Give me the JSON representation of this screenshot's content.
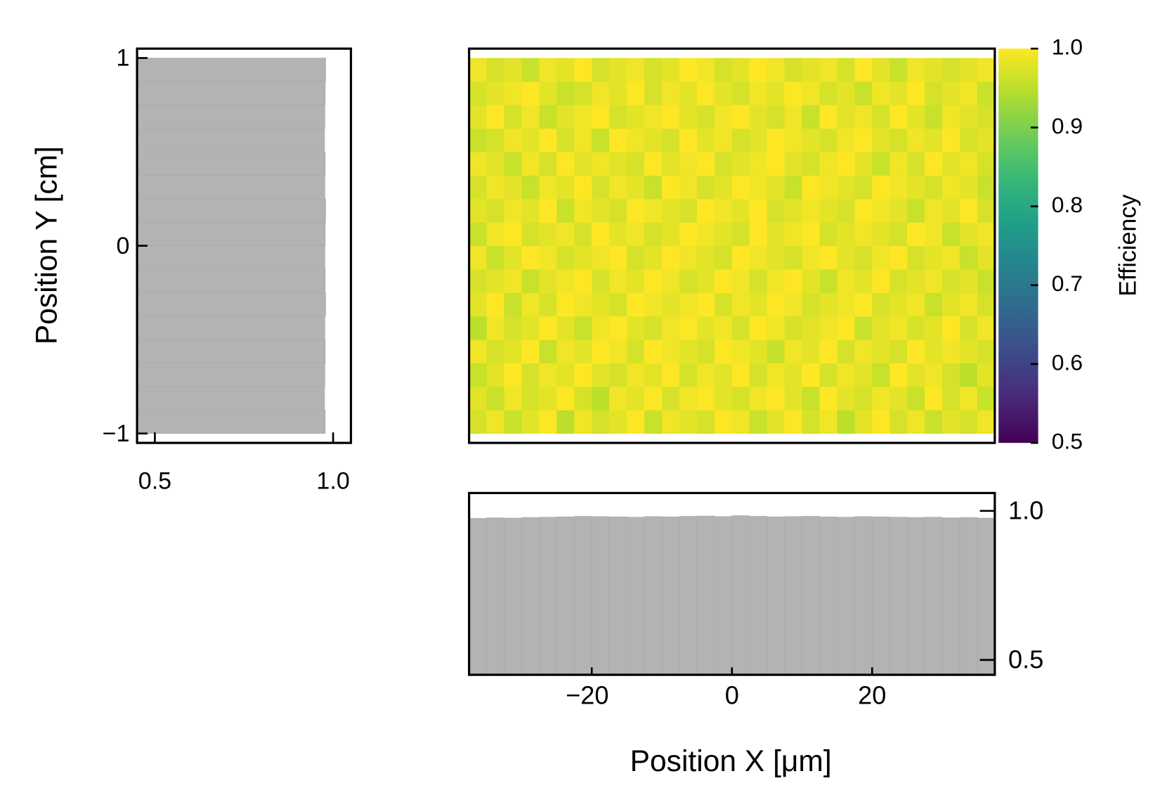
{
  "chart_data": [
    {
      "type": "heatmap",
      "colormap": "viridis",
      "xbins": [
        -37.5,
        -35,
        -32.5,
        -30,
        -27.5,
        -25,
        -22.5,
        -20,
        -17.5,
        -15,
        -12.5,
        -10,
        -7.5,
        -5,
        -2.5,
        0,
        2.5,
        5,
        7.5,
        10,
        12.5,
        15,
        17.5,
        20,
        22.5,
        25,
        27.5,
        30,
        32.5,
        35,
        37.5
      ],
      "ybins": [
        -1,
        -0.875,
        -0.75,
        -0.625,
        -0.5,
        -0.375,
        -0.25,
        -0.125,
        0,
        0.125,
        0.25,
        0.375,
        0.5,
        0.625,
        0.75,
        0.875,
        1
      ],
      "xlim": [
        -37.5,
        37.5
      ],
      "ylim": [
        -1.05,
        1.05
      ],
      "z": [
        [
          0.97,
          0.99,
          0.96,
          0.98,
          1,
          0.95,
          0.99,
          0.97,
          0.98,
          1,
          0.96,
          0.99,
          0.98,
          0.97,
          1,
          0.99,
          0.96,
          0.98,
          1,
          0.97,
          0.99,
          0.95,
          0.98,
          1,
          0.97,
          0.99,
          0.96,
          0.98,
          0.97,
          0.99
        ],
        [
          0.98,
          0.96,
          0.99,
          0.97,
          0.98,
          1,
          0.97,
          0.95,
          0.99,
          0.98,
          1,
          0.97,
          0.99,
          1,
          0.98,
          0.97,
          0.99,
          1,
          0.98,
          0.96,
          1,
          0.98,
          0.97,
          0.99,
          0.98,
          0.96,
          1,
          0.97,
          0.99,
          0.96
        ],
        [
          0.96,
          0.98,
          1,
          0.97,
          0.99,
          0.98,
          1,
          0.98,
          0.97,
          0.99,
          0.98,
          1,
          0.97,
          0.99,
          0.98,
          1,
          0.97,
          0.99,
          0.98,
          1,
          0.97,
          0.99,
          0.98,
          0.96,
          1,
          0.98,
          0.99,
          0.97,
          0.95,
          0.98
        ],
        [
          0.99,
          0.97,
          0.98,
          1,
          0.96,
          0.99,
          0.98,
          1,
          0.99,
          0.97,
          1,
          0.99,
          0.98,
          0.97,
          1,
          0.99,
          0.98,
          0.96,
          0.99,
          0.98,
          1,
          0.97,
          0.99,
          0.98,
          0.97,
          1,
          0.98,
          0.99,
          0.98,
          0.97
        ],
        [
          0.95,
          0.99,
          0.97,
          0.98,
          1,
          0.98,
          0.96,
          0.99,
          1,
          0.98,
          0.97,
          0.99,
          1,
          0.98,
          0.99,
          0.97,
          1,
          0.99,
          0.97,
          0.98,
          0.99,
          1,
          0.96,
          0.98,
          0.99,
          0.97,
          0.98,
          1,
          0.97,
          0.99
        ],
        [
          0.98,
          1,
          0.96,
          0.99,
          0.97,
          1,
          0.99,
          0.98,
          0.97,
          1,
          0.99,
          0.98,
          0.99,
          1,
          0.97,
          0.99,
          0.98,
          1,
          0.99,
          0.97,
          0.98,
          0.99,
          1,
          0.97,
          0.98,
          0.99,
          0.96,
          0.98,
          0.99,
          0.97
        ],
        [
          0.97,
          0.98,
          0.99,
          0.96,
          0.98,
          0.99,
          1,
          0.97,
          0.99,
          0.98,
          1,
          0.99,
          0.97,
          0.98,
          1,
          0.99,
          0.97,
          0.99,
          1,
          0.98,
          0.96,
          0.99,
          0.98,
          1,
          0.97,
          0.98,
          0.99,
          0.97,
          0.98,
          0.96
        ],
        [
          0.99,
          0.96,
          0.98,
          1,
          0.99,
          0.97,
          0.98,
          0.99,
          1,
          0.97,
          0.98,
          1,
          0.99,
          0.98,
          0.97,
          1,
          0.99,
          0.98,
          0.97,
          0.99,
          1,
          0.98,
          0.97,
          0.99,
          1,
          0.97,
          0.98,
          0.99,
          0.96,
          0.98
        ],
        [
          0.96,
          0.99,
          1,
          0.97,
          0.98,
          0.99,
          0.97,
          1,
          0.98,
          0.99,
          0.97,
          0.98,
          1,
          0.99,
          0.98,
          0.97,
          1,
          0.98,
          0.99,
          1,
          0.97,
          0.98,
          0.99,
          0.98,
          0.97,
          1,
          0.99,
          0.96,
          0.98,
          0.99
        ],
        [
          0.98,
          0.97,
          0.99,
          0.98,
          1,
          0.96,
          0.99,
          0.98,
          0.97,
          1,
          0.99,
          0.98,
          0.97,
          1,
          0.99,
          0.98,
          1,
          0.97,
          0.98,
          0.99,
          0.98,
          0.97,
          1,
          0.99,
          0.98,
          0.96,
          0.99,
          0.98,
          1,
          0.97
        ],
        [
          0.97,
          0.99,
          0.98,
          0.96,
          0.99,
          0.98,
          1,
          0.97,
          0.99,
          0.98,
          0.96,
          1,
          0.99,
          0.97,
          0.98,
          1,
          0.99,
          0.98,
          0.96,
          1,
          0.99,
          0.98,
          0.97,
          1,
          0.99,
          0.98,
          0.97,
          0.99,
          0.98,
          0.96
        ],
        [
          0.99,
          0.98,
          0.96,
          0.99,
          0.97,
          1,
          0.98,
          0.99,
          0.98,
          0.97,
          1,
          0.98,
          0.99,
          1,
          0.97,
          0.98,
          0.99,
          1,
          0.98,
          0.97,
          0.99,
          1,
          0.98,
          0.96,
          0.99,
          0.97,
          1,
          0.98,
          0.99,
          0.97
        ],
        [
          0.96,
          0.97,
          0.99,
          0.98,
          1,
          0.97,
          0.99,
          0.96,
          1,
          0.99,
          0.98,
          0.97,
          1,
          0.98,
          0.99,
          0.97,
          0.98,
          1,
          0.99,
          0.98,
          0.97,
          0.99,
          1,
          0.98,
          0.97,
          0.99,
          0.98,
          1,
          0.97,
          0.98
        ],
        [
          0.98,
          1,
          0.97,
          0.99,
          0.96,
          0.98,
          0.99,
          1,
          0.97,
          0.98,
          0.99,
          1,
          0.98,
          0.97,
          0.99,
          1,
          0.98,
          0.97,
          0.99,
          0.96,
          1,
          0.98,
          0.99,
          0.97,
          1,
          0.98,
          0.96,
          0.99,
          0.98,
          0.97
        ],
        [
          0.97,
          0.98,
          0.99,
          1,
          0.98,
          0.96,
          0.97,
          0.99,
          0.98,
          1,
          0.97,
          0.99,
          0.98,
          1,
          0.98,
          0.97,
          0.99,
          0.98,
          1,
          0.99,
          0.97,
          0.98,
          0.96,
          0.99,
          0.98,
          1,
          0.97,
          0.98,
          0.99,
          0.96
        ],
        [
          0.99,
          0.97,
          0.98,
          0.96,
          0.99,
          0.98,
          1,
          0.97,
          0.98,
          0.99,
          0.97,
          0.98,
          1,
          0.99,
          0.97,
          0.98,
          1,
          0.99,
          0.97,
          0.98,
          0.99,
          0.97,
          1,
          0.98,
          0.96,
          0.99,
          0.98,
          0.97,
          0.98,
          0.99
        ]
      ],
      "clim": [
        0.5,
        1
      ],
      "cticks": [
        0.5,
        0.6,
        0.7,
        0.8,
        0.9,
        {
          "value": 1,
          "label": "1.0"
        }
      ],
      "clabel": "Efficiency"
    },
    {
      "type": "histogram",
      "orientation": "vertical",
      "color": "#b3b3b3",
      "bins": [
        -37.5,
        -35,
        -32.5,
        -30,
        -27.5,
        -25,
        -22.5,
        -20,
        -17.5,
        -15,
        -12.5,
        -10,
        -7.5,
        -5,
        -2.5,
        0,
        2.5,
        5,
        7.5,
        10,
        12.5,
        15,
        17.5,
        20,
        22.5,
        25,
        27.5,
        30,
        32.5,
        35,
        37.5
      ],
      "values": [
        0.975,
        0.977,
        0.976,
        0.978,
        0.979,
        0.98,
        0.982,
        0.981,
        0.98,
        0.979,
        0.981,
        0.98,
        0.982,
        0.983,
        0.981,
        0.984,
        0.982,
        0.98,
        0.981,
        0.982,
        0.98,
        0.979,
        0.981,
        0.98,
        0.979,
        0.978,
        0.979,
        0.977,
        0.978,
        0.976
      ],
      "xlim": [
        -37.5,
        37.5
      ],
      "xticks": [
        {
          "value": -20,
          "label": "−20"
        },
        0,
        20
      ],
      "ylim": [
        0.45,
        1.06
      ],
      "yticks": [
        0.5,
        {
          "value": 1,
          "label": "1.0"
        }
      ],
      "xlabel": "Position X [μm]"
    },
    {
      "type": "histogram",
      "orientation": "horizontal",
      "color": "#b3b3b3",
      "bins": [
        -1,
        -0.875,
        -0.75,
        -0.625,
        -0.5,
        -0.375,
        -0.25,
        -0.125,
        0,
        0.125,
        0.25,
        0.375,
        0.5,
        0.625,
        0.75,
        0.875,
        1
      ],
      "values": [
        0.978,
        0.976,
        0.977,
        0.978,
        0.977,
        0.979,
        0.978,
        0.977,
        0.978,
        0.979,
        0.977,
        0.978,
        0.976,
        0.977,
        0.978,
        0.979
      ],
      "xlim": [
        0.45,
        1.05
      ],
      "xticks": [
        0.5,
        {
          "value": 1,
          "label": "1.0"
        }
      ],
      "ylim": [
        -1.05,
        1.05
      ],
      "yticks": [
        {
          "value": -1,
          "label": "−1"
        },
        0,
        1
      ],
      "ylabel": "Position Y [cm]"
    }
  ]
}
